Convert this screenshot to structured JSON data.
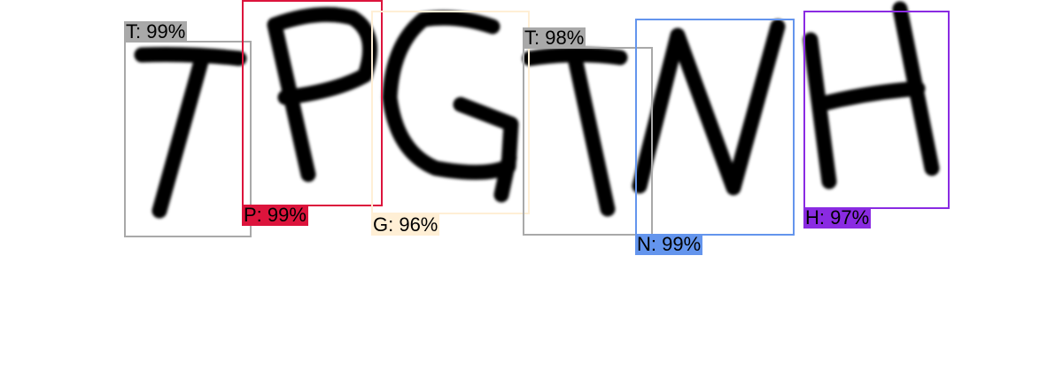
{
  "detections": [
    {
      "char": "T",
      "text": "T: 99%",
      "color": "#a9a9a9"
    },
    {
      "char": "P",
      "text": "P: 99%",
      "color": "#dc143c"
    },
    {
      "char": "G",
      "text": "G: 96%",
      "color": "#ffefd5"
    },
    {
      "char": "T",
      "text": "T: 98%",
      "color": "#a9a9a9"
    },
    {
      "char": "N",
      "text": "N: 99%",
      "color": "#6495ed"
    },
    {
      "char": "H",
      "text": "H: 97%",
      "color": "#8a2be2"
    }
  ],
  "label_text_color": "#000000",
  "stroke_color": "#000000"
}
